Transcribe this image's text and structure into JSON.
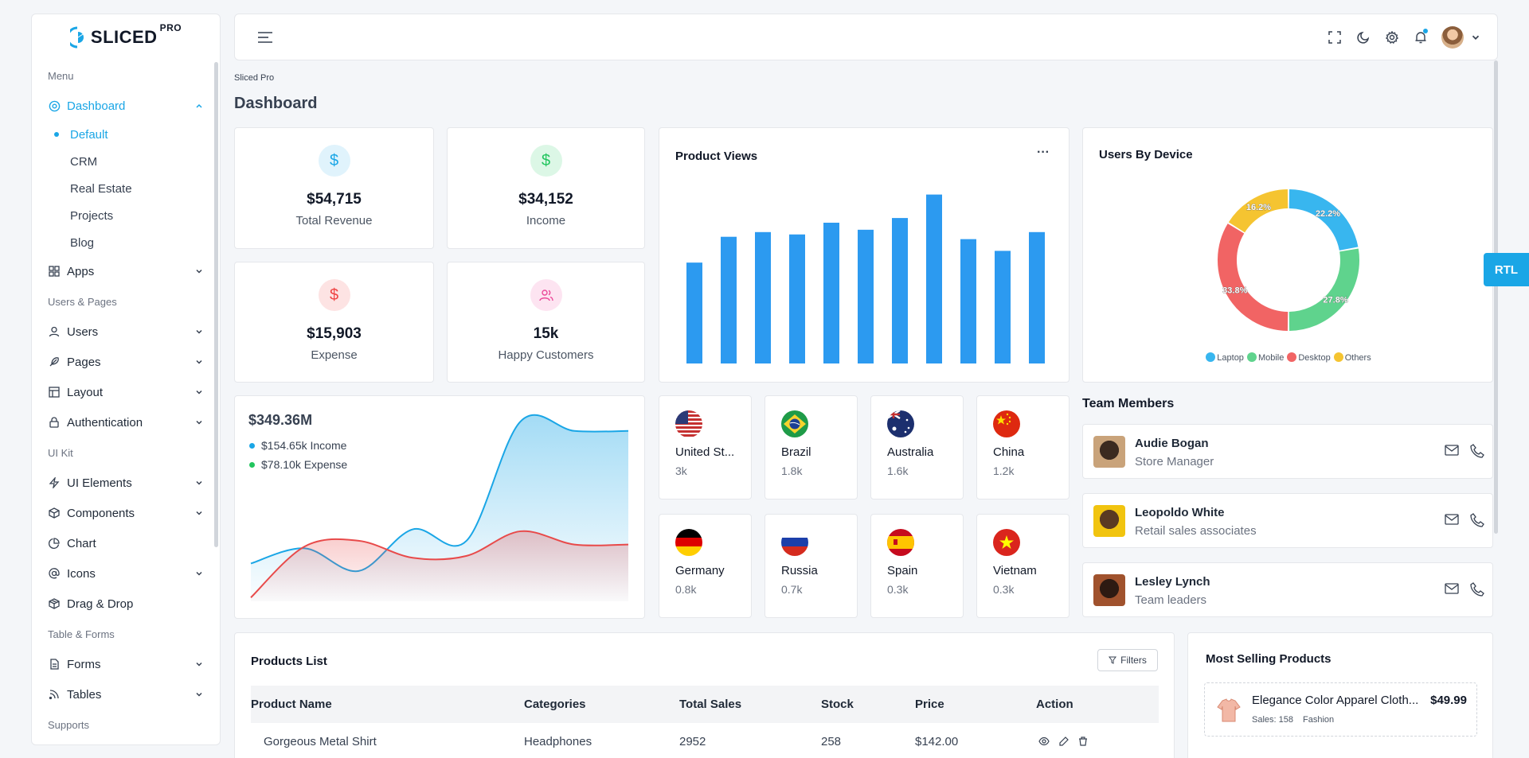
{
  "brand": {
    "name": "SLICED",
    "suffix": "PRO"
  },
  "sidebar": {
    "sections": [
      {
        "title": "Menu"
      },
      {
        "title": "Users & Pages"
      },
      {
        "title": "UI Kit"
      },
      {
        "title": "Table & Forms"
      },
      {
        "title": "Supports"
      }
    ],
    "items": {
      "dashboard": "Dashboard",
      "apps": "Apps",
      "users": "Users",
      "pages": "Pages",
      "layout": "Layout",
      "authentication": "Authentication",
      "ui_elements": "UI Elements",
      "components": "Components",
      "chart": "Chart",
      "icons": "Icons",
      "drag_drop": "Drag & Drop",
      "forms": "Forms",
      "tables": "Tables"
    },
    "dashboard_sub": [
      "Default",
      "CRM",
      "Real Estate",
      "Projects",
      "Blog"
    ]
  },
  "breadcrumb": "Sliced Pro",
  "page_title": "Dashboard",
  "stats": [
    {
      "value": "$54,715",
      "label": "Total Revenue",
      "icon": "dollar-icon",
      "color": "#1aa6e6"
    },
    {
      "value": "$34,152",
      "label": "Income",
      "icon": "dollar-icon",
      "color": "#22c55e"
    },
    {
      "value": "$15,903",
      "label": "Expense",
      "icon": "dollar-icon",
      "color": "#ef4444"
    },
    {
      "value": "15k",
      "label": "Happy Customers",
      "icon": "users-icon",
      "color": "#ec4899"
    }
  ],
  "product_views": {
    "title": "Product Views",
    "menu_glyph": "···",
    "chart_data": {
      "type": "bar",
      "values": [
        43,
        54,
        56,
        55,
        60,
        57,
        62,
        72,
        53,
        48,
        56
      ],
      "ylim": [
        0,
        80
      ],
      "color": "#2c9af0"
    }
  },
  "users_by_device": {
    "title": "Users By Device",
    "chart_data": {
      "type": "pie",
      "slices": [
        {
          "name": "Laptop",
          "value": 22.2,
          "label": "22.2%",
          "color": "#38b6ef"
        },
        {
          "name": "Mobile",
          "value": 27.8,
          "label": "27.8%",
          "color": "#5fd38d"
        },
        {
          "name": "Desktop",
          "value": 33.8,
          "label": "33.8%",
          "color": "#f16464"
        },
        {
          "name": "Others",
          "value": 16.2,
          "label": "16.2%",
          "color": "#f5c431"
        }
      ],
      "legend_placement": "bottom"
    }
  },
  "revenue": {
    "total": "$349.36M",
    "income_label": "$154.65k Income",
    "expense_label": "$78.10k Expense",
    "income_color": "#1aa6e6",
    "expense_color": "#22c55e",
    "chart_data": {
      "type": "area",
      "x": [
        0,
        1,
        2,
        3,
        4,
        5,
        6,
        7
      ],
      "ylim": [
        0,
        100
      ],
      "series": [
        {
          "values": [
            20,
            28,
            16,
            38,
            32,
            95,
            90,
            90
          ],
          "color": "#1aa6e6"
        },
        {
          "values": [
            2,
            29,
            32,
            23,
            24,
            37,
            30,
            30
          ],
          "color": "#e84a4a"
        }
      ]
    }
  },
  "countries": [
    {
      "name": "United St...",
      "value": "3k",
      "flag": "us-flag"
    },
    {
      "name": "Brazil",
      "value": "1.8k",
      "flag": "br-flag"
    },
    {
      "name": "Australia",
      "value": "1.6k",
      "flag": "au-flag"
    },
    {
      "name": "China",
      "value": "1.2k",
      "flag": "cn-flag"
    },
    {
      "name": "Germany",
      "value": "0.8k",
      "flag": "de-flag"
    },
    {
      "name": "Russia",
      "value": "0.7k",
      "flag": "ru-flag"
    },
    {
      "name": "Spain",
      "value": "0.3k",
      "flag": "es-flag"
    },
    {
      "name": "Vietnam",
      "value": "0.3k",
      "flag": "vn-flag"
    }
  ],
  "team": {
    "title": "Team Members",
    "members": [
      {
        "name": "Audie Bogan",
        "role": "Store Manager"
      },
      {
        "name": "Leopoldo White",
        "role": "Retail sales associates"
      },
      {
        "name": "Lesley Lynch",
        "role": "Team leaders"
      }
    ]
  },
  "rtl_label": "RTL",
  "products": {
    "title": "Products List",
    "filters_label": "Filters",
    "columns": [
      "Product Name",
      "Categories",
      "Total Sales",
      "Stock",
      "Price",
      "Action"
    ],
    "rows": [
      {
        "name": "Gorgeous Metal Shirt",
        "category": "Headphones",
        "sales": "2952",
        "stock": "258",
        "price": "$142.00"
      }
    ]
  },
  "most_selling": {
    "title": "Most Selling Products",
    "items": [
      {
        "name": "Elegance Color Apparel Cloth...",
        "price": "$49.99",
        "sales": "Sales: 158",
        "category": "Fashion"
      }
    ]
  }
}
